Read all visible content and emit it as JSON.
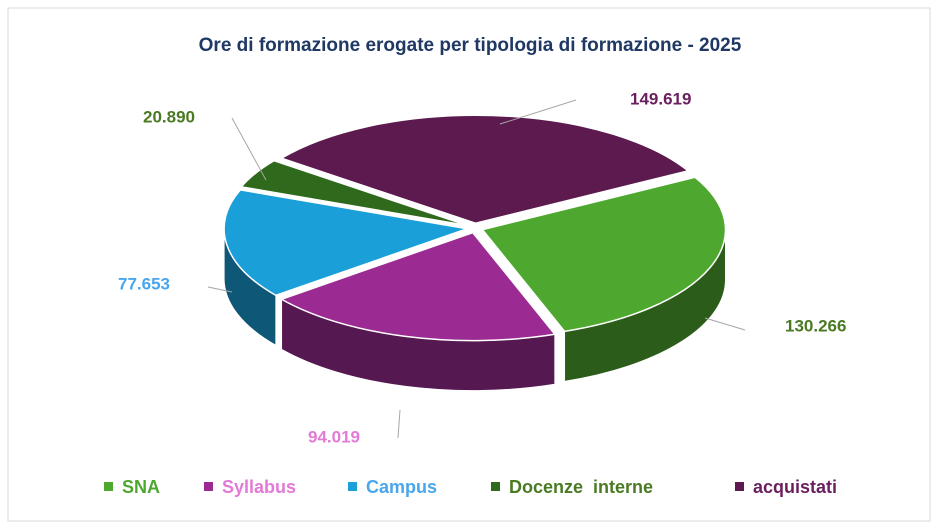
{
  "chart_data": {
    "type": "pie",
    "title": "Ore di formazione erogate per tipologia di formazione - 2025",
    "categories": [
      "SNA",
      "Syllabus",
      "Campus",
      "Docenze  interne",
      "acquistati"
    ],
    "values": [
      130266,
      94019,
      77653,
      20890,
      149619
    ],
    "value_labels": [
      "130.266",
      "94.019",
      "77.653",
      "20.890",
      "149.619"
    ],
    "colors": [
      "#4ea72e",
      "#9b2b92",
      "#1a9fd9",
      "#2f6a1c",
      "#5c1a4f"
    ],
    "label_colors": [
      "#4a7a23",
      "#e27ad6",
      "#4aa6ec",
      "#4a7a23",
      "#6a1f5e"
    ],
    "legend": "bottom"
  }
}
